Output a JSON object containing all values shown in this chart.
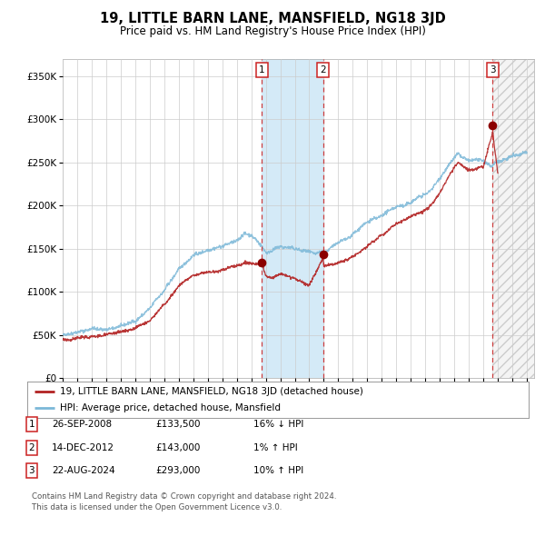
{
  "title": "19, LITTLE BARN LANE, MANSFIELD, NG18 3JD",
  "subtitle": "Price paid vs. HM Land Registry's House Price Index (HPI)",
  "ylim": [
    0,
    370000
  ],
  "xlim_start": 1995.0,
  "xlim_end": 2027.5,
  "yticks": [
    0,
    50000,
    100000,
    150000,
    200000,
    250000,
    300000,
    350000
  ],
  "ytick_labels": [
    "£0",
    "£50K",
    "£100K",
    "£150K",
    "£200K",
    "£250K",
    "£300K",
    "£350K"
  ],
  "xticks": [
    1995,
    1996,
    1997,
    1998,
    1999,
    2000,
    2001,
    2002,
    2003,
    2004,
    2005,
    2006,
    2007,
    2008,
    2009,
    2010,
    2011,
    2012,
    2013,
    2014,
    2015,
    2016,
    2017,
    2018,
    2019,
    2020,
    2021,
    2022,
    2023,
    2024,
    2025,
    2026,
    2027
  ],
  "sale_dates": [
    2008.737,
    2012.953,
    2024.644
  ],
  "sale_prices": [
    133500,
    143000,
    293000
  ],
  "sale_labels": [
    "1",
    "2",
    "3"
  ],
  "shade_region_blue": [
    2008.737,
    2012.953
  ],
  "shade_region_hatch": [
    2024.644,
    2027.5
  ],
  "hpi_color": "#7bb8d8",
  "price_color": "#b22222",
  "dot_color": "#8b0000",
  "vline_color": "#cc2222",
  "legend_house_label": "19, LITTLE BARN LANE, MANSFIELD, NG18 3JD (detached house)",
  "legend_hpi_label": "HPI: Average price, detached house, Mansfield",
  "table_rows": [
    {
      "num": "1",
      "date": "26-SEP-2008",
      "price": "£133,500",
      "hpi": "16% ↓ HPI"
    },
    {
      "num": "2",
      "date": "14-DEC-2012",
      "price": "£143,000",
      "hpi": "1% ↑ HPI"
    },
    {
      "num": "3",
      "date": "22-AUG-2024",
      "price": "£293,000",
      "hpi": "10% ↑ HPI"
    }
  ],
  "footnote": "Contains HM Land Registry data © Crown copyright and database right 2024.\nThis data is licensed under the Open Government Licence v3.0.",
  "bg_color": "#ffffff",
  "grid_color": "#cccccc"
}
